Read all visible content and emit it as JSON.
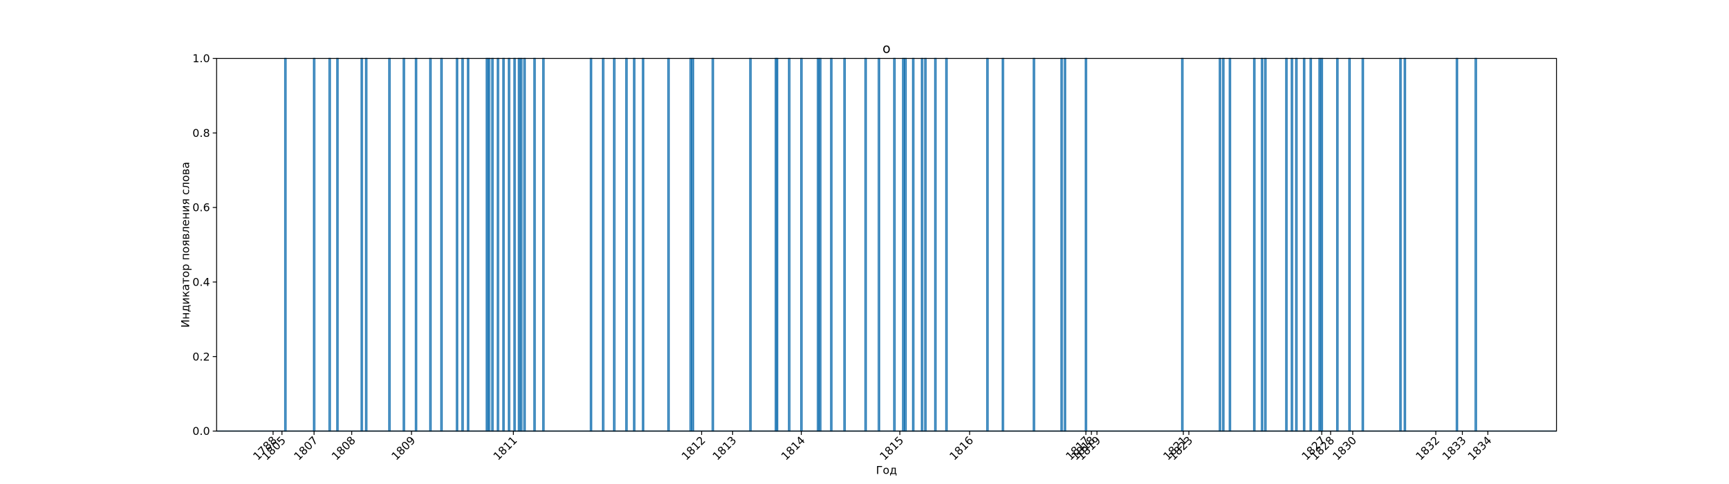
{
  "chart_data": {
    "type": "bar",
    "title": "o",
    "xlabel": "Год",
    "ylabel": "Индикатор появления слова",
    "ylim": [
      0,
      1
    ],
    "yticks": [
      "0.0",
      "0.2",
      "0.4",
      "0.6",
      "0.8",
      "1.0"
    ],
    "xticks": [
      {
        "label": "1788",
        "x": 251
      },
      {
        "label": "1805",
        "x": 259
      },
      {
        "label": "1807",
        "x": 288
      },
      {
        "label": "1808",
        "x": 322
      },
      {
        "label": "1809",
        "x": 376
      },
      {
        "label": "1811",
        "x": 468
      },
      {
        "label": "1812",
        "x": 638
      },
      {
        "label": "1813",
        "x": 666
      },
      {
        "label": "1814",
        "x": 728
      },
      {
        "label": "1815",
        "x": 817
      },
      {
        "label": "1816",
        "x": 880
      },
      {
        "label": "1817",
        "x": 985
      },
      {
        "label": "1818",
        "x": 990
      },
      {
        "label": "1819",
        "x": 995
      },
      {
        "label": "1821",
        "x": 1073
      },
      {
        "label": "1823",
        "x": 1078
      },
      {
        "label": "1827",
        "x": 1198
      },
      {
        "label": "1828",
        "x": 1206
      },
      {
        "label": "1830",
        "x": 1226
      },
      {
        "label": "1832",
        "x": 1301
      },
      {
        "label": "1833",
        "x": 1325
      },
      {
        "label": "1834",
        "x": 1348
      }
    ],
    "xlim": [
      200,
      1410
    ],
    "color": "#1f77b4",
    "x": [
      262,
      288,
      302,
      309,
      331,
      335,
      356,
      369,
      380,
      393,
      403,
      417,
      422,
      427,
      444,
      446,
      449,
      454,
      459,
      464,
      469,
      473,
      475,
      478,
      487,
      495,
      538,
      549,
      559,
      570,
      577,
      585,
      608,
      628,
      630,
      648,
      682,
      705,
      706,
      717,
      728,
      743,
      745,
      755,
      767,
      786,
      798,
      812,
      820,
      822,
      829,
      837,
      840,
      849,
      859,
      896,
      910,
      938,
      963,
      966,
      985,
      1072,
      1106,
      1109,
      1115,
      1137,
      1144,
      1147,
      1166,
      1171,
      1175,
      1182,
      1188,
      1196,
      1198,
      1212,
      1223,
      1235,
      1269,
      1273,
      1320,
      1337
    ],
    "values": [
      1,
      1,
      1,
      1,
      1,
      1,
      1,
      1,
      1,
      1,
      1,
      1,
      1,
      1,
      1,
      1,
      1,
      1,
      1,
      1,
      1,
      1,
      1,
      1,
      1,
      1,
      1,
      1,
      1,
      1,
      1,
      1,
      1,
      1,
      1,
      1,
      1,
      1,
      1,
      1,
      1,
      1,
      1,
      1,
      1,
      1,
      1,
      1,
      1,
      1,
      1,
      1,
      1,
      1,
      1,
      1,
      1,
      1,
      1,
      1,
      1,
      1,
      1,
      1,
      1,
      1,
      1,
      1,
      1,
      1,
      1,
      1,
      1,
      1,
      1,
      1,
      1,
      1,
      1,
      1,
      1,
      1
    ]
  }
}
